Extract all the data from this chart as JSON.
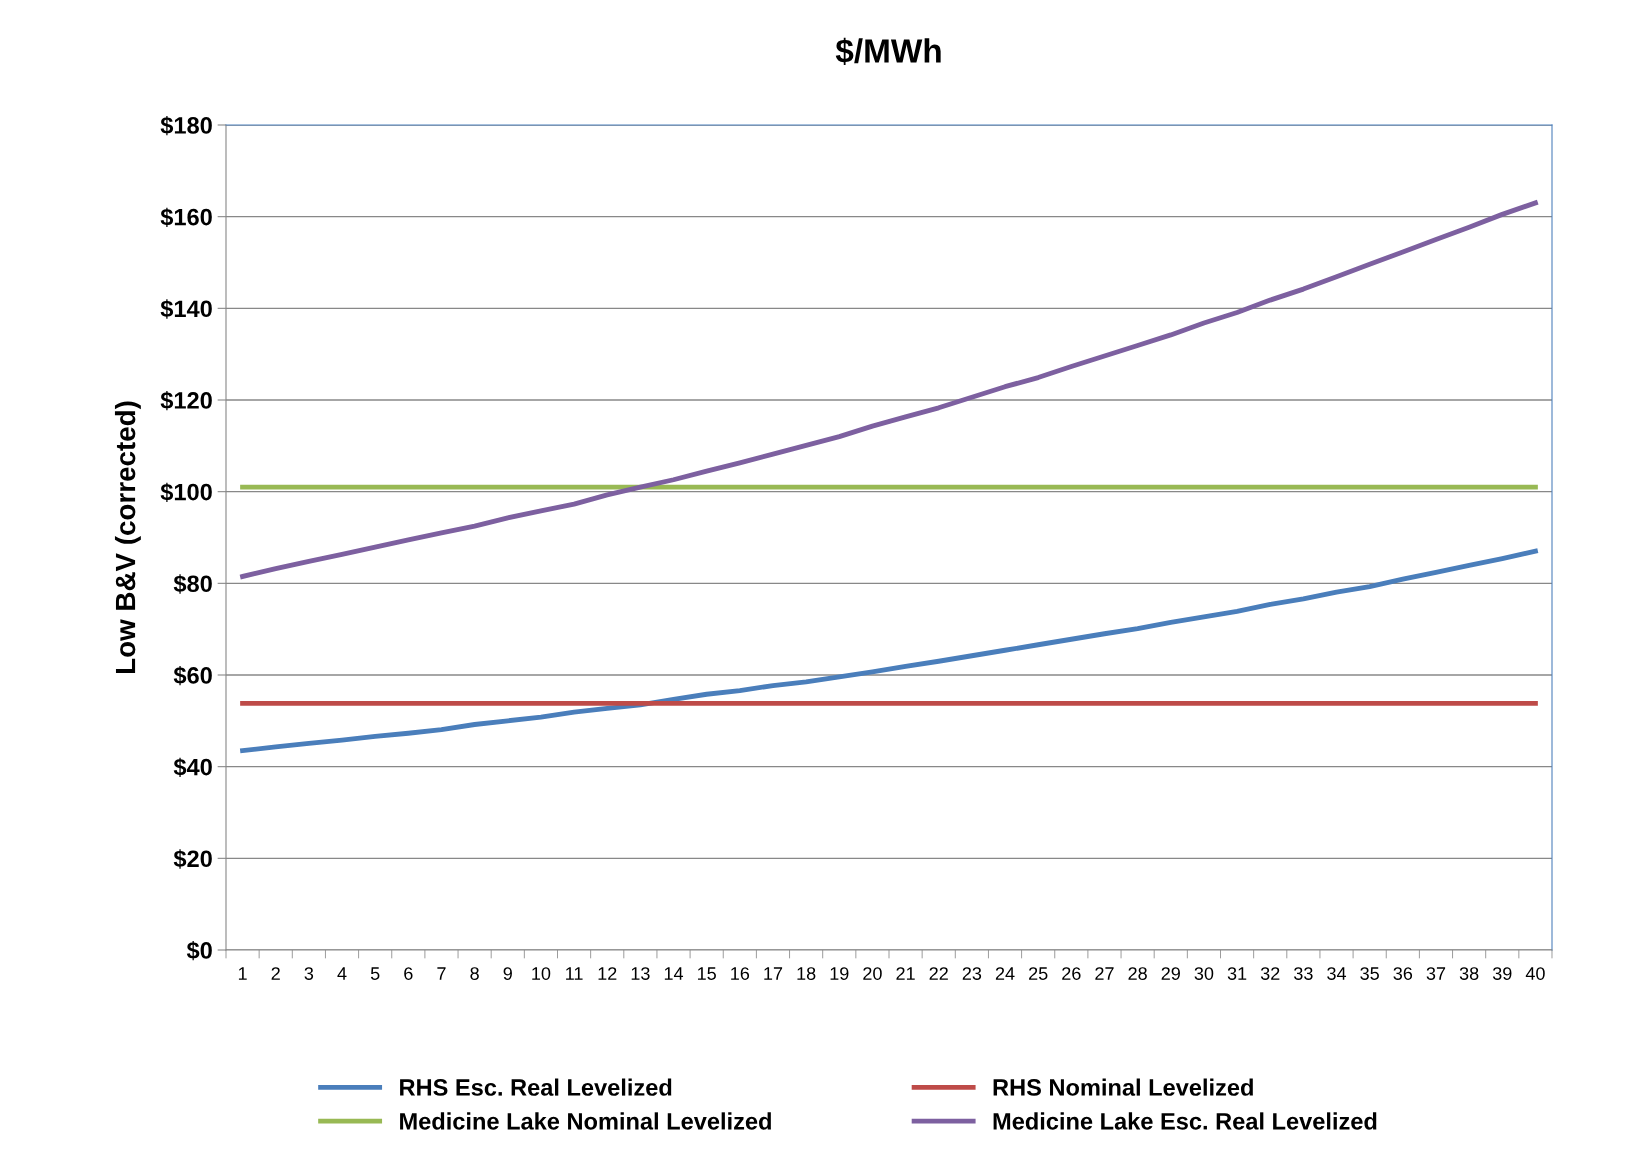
{
  "chart_data": {
    "type": "line",
    "title": "$/MWh",
    "ylabel": "Low B&V (corrected)",
    "categories": [
      "1",
      "2",
      "3",
      "4",
      "5",
      "6",
      "7",
      "8",
      "9",
      "10",
      "11",
      "12",
      "13",
      "14",
      "15",
      "16",
      "17",
      "18",
      "19",
      "20",
      "21",
      "22",
      "23",
      "24",
      "25",
      "26",
      "27",
      "28",
      "29",
      "30",
      "31",
      "32",
      "33",
      "34",
      "35",
      "36",
      "37",
      "38",
      "39",
      "40"
    ],
    "series": [
      {
        "name": "RHS Esc. Real Levelized",
        "color": "#4a7ebb",
        "values": [
          43.5,
          44.3,
          45.1,
          45.8,
          46.6,
          47.3,
          48.1,
          49.2,
          50,
          50.8,
          51.9,
          52.7,
          53.5,
          54.7,
          55.8,
          56.6,
          57.7,
          58.5,
          59.6,
          60.7,
          61.9,
          63,
          64.2,
          65.4,
          66.6,
          67.8,
          69,
          70.1,
          71.5,
          72.7,
          73.9,
          75.4,
          76.6,
          78.1,
          79.3,
          80.9,
          82.4,
          83.9,
          85.4,
          87
        ]
      },
      {
        "name": "RHS Nominal Levelized",
        "color": "#be4b48",
        "values": [
          53.8,
          53.8,
          53.8,
          53.8,
          53.8,
          53.8,
          53.8,
          53.8,
          53.8,
          53.8,
          53.8,
          53.8,
          53.8,
          53.8,
          53.8,
          53.8,
          53.8,
          53.8,
          53.8,
          53.8,
          53.8,
          53.8,
          53.8,
          53.8,
          53.8,
          53.8,
          53.8,
          53.8,
          53.8,
          53.8,
          53.8,
          53.8,
          53.8,
          53.8,
          53.8,
          53.8,
          53.8,
          53.8,
          53.8,
          53.8
        ]
      },
      {
        "name": "Medicine Lake Nominal Levelized",
        "color": "#98b954",
        "values": [
          101,
          101,
          101,
          101,
          101,
          101,
          101,
          101,
          101,
          101,
          101,
          101,
          101,
          101,
          101,
          101,
          101,
          101,
          101,
          101,
          101,
          101,
          101,
          101,
          101,
          101,
          101,
          101,
          101,
          101,
          101,
          101,
          101,
          101,
          101,
          101,
          101,
          101,
          101,
          101
        ]
      },
      {
        "name": "Medicine Lake Esc. Real Levelized",
        "color": "#7d60a0",
        "values": [
          81.5,
          83.2,
          84.8,
          86.3,
          87.9,
          89.5,
          91,
          92.5,
          94.3,
          95.8,
          97.3,
          99.3,
          101,
          102.6,
          104.5,
          106.3,
          108.2,
          110.1,
          112,
          114.3,
          116.3,
          118.3,
          120.6,
          122.9,
          124.9,
          127.3,
          129.6,
          131.9,
          134.2,
          136.8,
          139.1,
          141.8,
          144.2,
          146.9,
          149.6,
          152.3,
          155,
          157.7,
          160.5,
          163
        ]
      }
    ],
    "ylim": [
      0,
      180
    ],
    "yticks": [
      {
        "value": 0,
        "label": "$0"
      },
      {
        "value": 20,
        "label": "$20"
      },
      {
        "value": 40,
        "label": "$40"
      },
      {
        "value": 60,
        "label": "$60"
      },
      {
        "value": 80,
        "label": "$80"
      },
      {
        "value": 100,
        "label": "$100"
      },
      {
        "value": 120,
        "label": "$120"
      },
      {
        "value": 140,
        "label": "$140"
      },
      {
        "value": 160,
        "label": "$160"
      },
      {
        "value": 180,
        "label": "$180"
      }
    ],
    "grid": "y",
    "legend": "bottom",
    "marker": "none",
    "line_style": "solid"
  }
}
